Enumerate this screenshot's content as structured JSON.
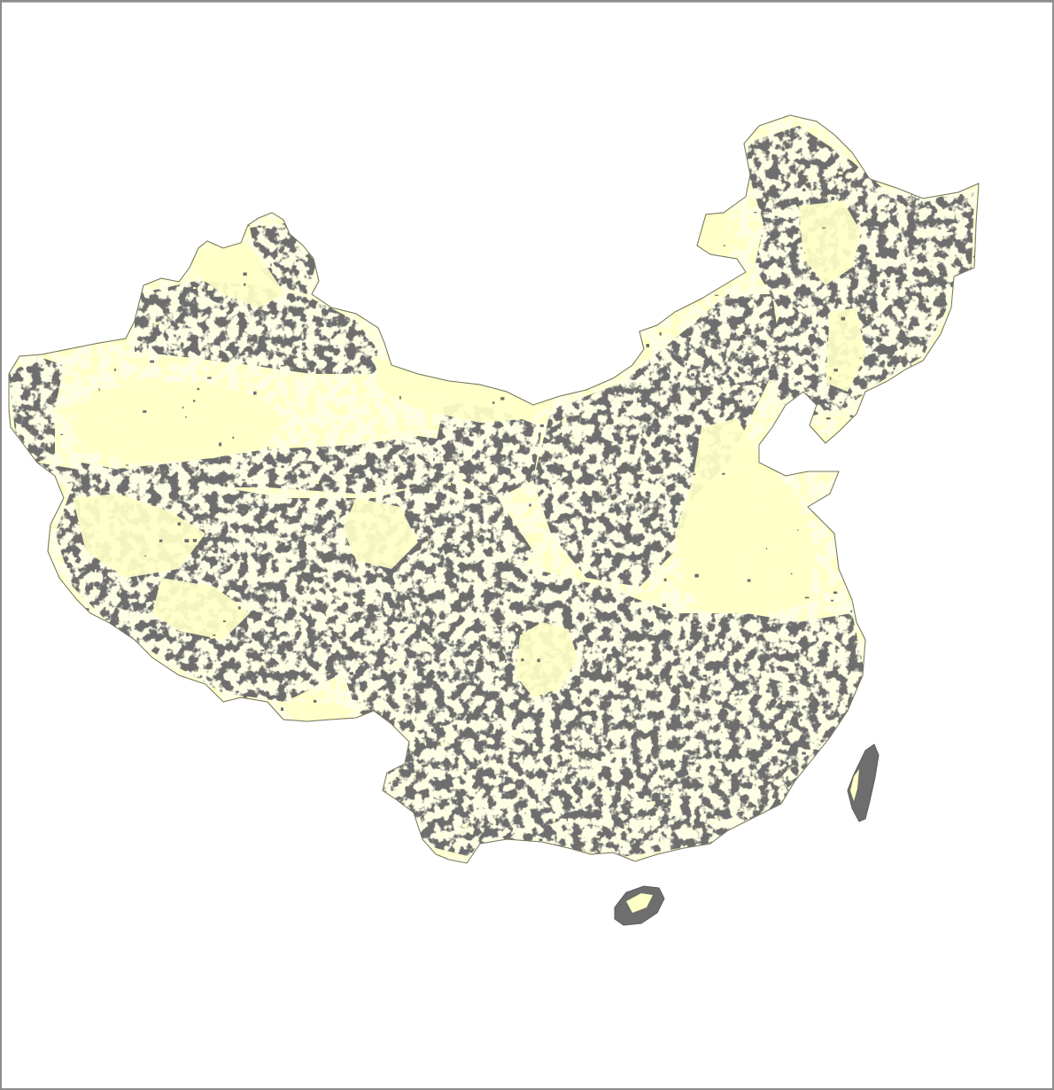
{
  "map": {
    "colors": {
      "background": "#ffffff",
      "land_class_a": "#ffffc8",
      "land_class_b": "#6e6e6e",
      "frame": "#8c8c8c"
    }
  }
}
